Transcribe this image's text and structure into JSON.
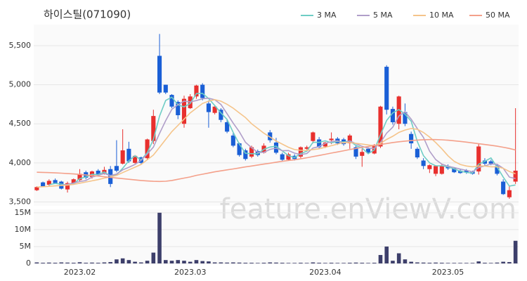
{
  "watermark": "feature.enViewV.com",
  "chart_data": [
    {
      "type": "candlestick",
      "title": "하이스틸(071090)",
      "up_color": "#e8302e",
      "down_color": "#1a5fd6",
      "grid": true,
      "legend": "upper right",
      "ylim": [
        3450,
        5770
      ],
      "yticks": [
        {
          "value": 3500,
          "label": "3,500"
        },
        {
          "value": 4000,
          "label": "4,000"
        },
        {
          "value": 4500,
          "label": "4,500"
        },
        {
          "value": 5000,
          "label": "5,000"
        },
        {
          "value": 5500,
          "label": "5,500"
        }
      ],
      "open": [
        3650,
        3750,
        3720,
        3780,
        3760,
        3660,
        3740,
        3780,
        3880,
        3820,
        3900,
        3860,
        3920,
        3960,
        3990,
        4180,
        4000,
        4070,
        4060,
        4280,
        5370,
        5000,
        4870,
        4780,
        4500,
        4700,
        4850,
        5000,
        4760,
        4640,
        4680,
        4520,
        4350,
        4250,
        4160,
        4080,
        4150,
        4130,
        4390,
        4260,
        4110,
        4040,
        4090,
        4080,
        4180,
        4280,
        4300,
        4210,
        4290,
        4310,
        4300,
        4250,
        4200,
        4090,
        4180,
        4120,
        4210,
        5230,
        4690,
        4500,
        4650,
        4370,
        4180,
        4030,
        3920,
        3860,
        3860,
        3960,
        3930,
        3900,
        3900,
        3890,
        3890,
        4030,
        4020,
        3960,
        3760,
        3560,
        3760
      ],
      "high": [
        3700,
        3760,
        3790,
        3800,
        3770,
        3760,
        3800,
        3920,
        3900,
        3900,
        3920,
        3950,
        3960,
        4290,
        4430,
        4270,
        4100,
        4080,
        4310,
        4680,
        5650,
        5000,
        4880,
        4800,
        4860,
        4880,
        5000,
        5020,
        4800,
        4740,
        4700,
        4560,
        4380,
        4260,
        4180,
        4220,
        4170,
        4250,
        4420,
        4320,
        4130,
        4130,
        4110,
        4210,
        4220,
        4400,
        4330,
        4270,
        4390,
        4330,
        4320,
        4370,
        4230,
        4180,
        4200,
        4240,
        4730,
        5250,
        4720,
        4860,
        4760,
        4400,
        4200,
        4060,
        3980,
        3970,
        3980,
        3980,
        3940,
        3920,
        3920,
        3900,
        4240,
        4060,
        4040,
        3980,
        3790,
        3700,
        4700
      ],
      "low": [
        3640,
        3690,
        3700,
        3730,
        3660,
        3620,
        3720,
        3760,
        3790,
        3800,
        3830,
        3850,
        3690,
        3880,
        3980,
        4000,
        3990,
        3980,
        4040,
        4240,
        4880,
        4880,
        4700,
        4560,
        4450,
        4690,
        4820,
        4800,
        4450,
        4620,
        4520,
        4380,
        4200,
        4080,
        4030,
        4060,
        4080,
        4120,
        4260,
        4110,
        4020,
        4030,
        4030,
        4060,
        4170,
        4250,
        4180,
        4190,
        4240,
        4230,
        4220,
        4180,
        4050,
        3950,
        4110,
        4110,
        4190,
        4620,
        4490,
        4430,
        4470,
        4180,
        4050,
        3920,
        3870,
        3830,
        3850,
        3910,
        3870,
        3860,
        3860,
        3850,
        3850,
        3960,
        3970,
        3840,
        3590,
        3540,
        3730
      ],
      "close": [
        3690,
        3700,
        3770,
        3740,
        3670,
        3740,
        3790,
        3860,
        3810,
        3890,
        3850,
        3910,
        3730,
        3900,
        4160,
        4020,
        4090,
        4000,
        4300,
        4600,
        4900,
        4900,
        4720,
        4610,
        4820,
        4850,
        4990,
        4830,
        4650,
        4720,
        4550,
        4400,
        4220,
        4100,
        4050,
        4200,
        4100,
        4220,
        4290,
        4130,
        4040,
        4110,
        4050,
        4200,
        4200,
        4390,
        4200,
        4260,
        4310,
        4250,
        4240,
        4350,
        4080,
        4140,
        4130,
        4230,
        4720,
        4680,
        4520,
        4850,
        4500,
        4250,
        4070,
        3960,
        3970,
        3960,
        3960,
        3930,
        3880,
        3870,
        3880,
        3860,
        4210,
        3990,
        3990,
        3860,
        3600,
        3650,
        3900
      ],
      "series": [
        {
          "name": "3 MA",
          "color": "#6ecdc5",
          "values": [
            null,
            null,
            3720,
            3737,
            3727,
            3717,
            3733,
            3797,
            3820,
            3853,
            3850,
            3883,
            3830,
            3847,
            3930,
            4027,
            4090,
            4037,
            4130,
            4300,
            4600,
            4800,
            4840,
            4743,
            4717,
            4760,
            4887,
            4890,
            4823,
            4733,
            4640,
            4557,
            4390,
            4240,
            4123,
            4117,
            4117,
            4173,
            4203,
            4213,
            4153,
            4093,
            4067,
            4120,
            4150,
            4263,
            4263,
            4283,
            4257,
            4273,
            4267,
            4280,
            4223,
            4190,
            4117,
            4167,
            4360,
            4543,
            4640,
            4683,
            4623,
            4533,
            4273,
            4093,
            4000,
            3963,
            3963,
            3950,
            3923,
            3893,
            3877,
            3870,
            3983,
            4020,
            4063,
            3947,
            3817,
            3703,
            3717
          ]
        },
        {
          "name": "5 MA",
          "color": "#b09ec9",
          "values": [
            null,
            null,
            null,
            null,
            3714,
            3724,
            3742,
            3760,
            3774,
            3818,
            3840,
            3864,
            3838,
            3856,
            3910,
            3944,
            3980,
            4034,
            4114,
            4202,
            4378,
            4540,
            4684,
            4746,
            4790,
            4780,
            4798,
            4820,
            4828,
            4808,
            4748,
            4630,
            4508,
            4398,
            4264,
            4194,
            4134,
            4134,
            4172,
            4188,
            4156,
            4158,
            4124,
            4106,
            4120,
            4190,
            4208,
            4250,
            4272,
            4282,
            4252,
            4282,
            4246,
            4212,
            4188,
            4186,
            4260,
            4380,
            4456,
            4600,
            4654,
            4560,
            4438,
            4326,
            4150,
            4042,
            3984,
            3956,
            3940,
            3920,
            3904,
            3884,
            3940,
            3962,
            3986,
            3982,
            3930,
            3818,
            3800
          ]
        },
        {
          "name": "10 MA",
          "color": "#f5c48a",
          "values": [
            3690,
            3695,
            3700,
            3705,
            3710,
            3715,
            3725,
            3740,
            3755,
            3770,
            3785,
            3805,
            3820,
            3840,
            3875,
            3910,
            3945,
            3980,
            4040,
            4100,
            4200,
            4300,
            4400,
            4480,
            4560,
            4640,
            4700,
            4760,
            4790,
            4810,
            4790,
            4750,
            4700,
            4640,
            4580,
            4500,
            4440,
            4380,
            4330,
            4280,
            4240,
            4200,
            4170,
            4160,
            4160,
            4170,
            4180,
            4200,
            4220,
            4240,
            4260,
            4260,
            4250,
            4240,
            4230,
            4220,
            4250,
            4300,
            4340,
            4390,
            4420,
            4440,
            4430,
            4390,
            4330,
            4260,
            4180,
            4090,
            4020,
            3980,
            3960,
            3950,
            3960,
            3960,
            3950,
            3950,
            3930,
            3890,
            3860
          ]
        },
        {
          "name": "50 MA",
          "color": "#f4a08a",
          "values": [
            3880,
            3878,
            3875,
            3872,
            3868,
            3863,
            3858,
            3852,
            3845,
            3838,
            3830,
            3822,
            3814,
            3806,
            3798,
            3790,
            3782,
            3775,
            3768,
            3764,
            3762,
            3765,
            3775,
            3790,
            3805,
            3820,
            3840,
            3855,
            3870,
            3885,
            3898,
            3910,
            3922,
            3935,
            3948,
            3960,
            3972,
            3984,
            3996,
            4008,
            4020,
            4030,
            4040,
            4052,
            4065,
            4080,
            4095,
            4110,
            4125,
            4140,
            4155,
            4170,
            4185,
            4198,
            4210,
            4222,
            4235,
            4248,
            4260,
            4270,
            4278,
            4285,
            4292,
            4296,
            4298,
            4298,
            4295,
            4290,
            4283,
            4275,
            4266,
            4256,
            4245,
            4235,
            4225,
            4213,
            4200,
            4185,
            4165
          ]
        }
      ]
    },
    {
      "type": "bar",
      "color": "#3d3f6b",
      "grid": true,
      "ylim": [
        0,
        16000000
      ],
      "yticks": [
        0,
        {
          "value": 5000000,
          "label": "5M"
        },
        {
          "value": 10000000,
          "label": "10M"
        },
        {
          "value": 15000000,
          "label": "15M"
        }
      ],
      "categories": [
        null,
        null,
        null,
        null,
        null,
        null,
        null,
        "2023.02",
        null,
        null,
        null,
        null,
        null,
        null,
        null,
        null,
        null,
        null,
        null,
        null,
        null,
        null,
        null,
        null,
        null,
        "2023.03",
        null,
        null,
        null,
        null,
        null,
        null,
        null,
        null,
        null,
        null,
        null,
        null,
        null,
        null,
        null,
        null,
        null,
        null,
        null,
        null,
        null,
        "2023.04",
        null,
        null,
        null,
        null,
        null,
        null,
        null,
        null,
        null,
        null,
        null,
        null,
        null,
        null,
        null,
        null,
        null,
        null,
        null,
        "2023.05",
        null,
        null,
        null,
        null,
        null,
        null,
        null,
        null,
        null,
        null,
        null
      ],
      "values": [
        300000,
        200000,
        250000,
        200000,
        300000,
        250000,
        200000,
        350000,
        200000,
        250000,
        200000,
        300000,
        400000,
        1200000,
        1500000,
        1000000,
        500000,
        300000,
        800000,
        3200000,
        15000000,
        1000000,
        800000,
        1000000,
        800000,
        500000,
        1000000,
        700000,
        600000,
        300000,
        300000,
        250000,
        300000,
        250000,
        200000,
        200000,
        150000,
        200000,
        300000,
        250000,
        200000,
        150000,
        150000,
        200000,
        150000,
        300000,
        200000,
        150000,
        200000,
        150000,
        150000,
        200000,
        250000,
        200000,
        150000,
        200000,
        2500000,
        5000000,
        800000,
        3000000,
        1200000,
        500000,
        300000,
        250000,
        200000,
        250000,
        200000,
        150000,
        150000,
        150000,
        150000,
        150000,
        600000,
        200000,
        150000,
        250000,
        500000,
        400000,
        6700000
      ]
    }
  ]
}
